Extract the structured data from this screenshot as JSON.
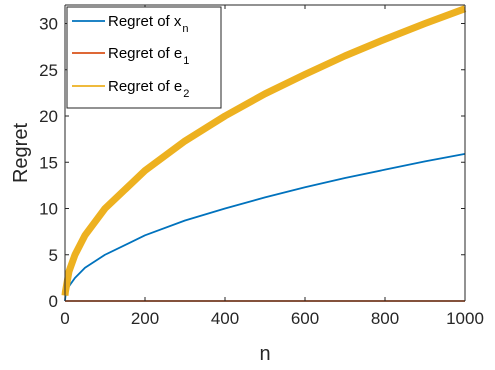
{
  "chart_data": {
    "type": "line",
    "xlabel": "n",
    "ylabel": "Regret",
    "xlim": [
      0,
      1000
    ],
    "ylim": [
      0,
      32
    ],
    "xticks": [
      "0",
      "200",
      "400",
      "600",
      "800",
      "1000"
    ],
    "yticks": [
      "0",
      "5",
      "10",
      "15",
      "20",
      "25",
      "30"
    ],
    "grid": false,
    "legend_position": "top-left",
    "x": [
      1,
      10,
      25,
      50,
      100,
      200,
      300,
      400,
      500,
      600,
      700,
      800,
      900,
      1000
    ],
    "series": [
      {
        "name": "Regret of x",
        "name_subscript": "n",
        "color": "#0072BD",
        "values": [
          0.5,
          1.6,
          2.5,
          3.6,
          5.0,
          7.1,
          8.7,
          10.0,
          11.2,
          12.3,
          13.3,
          14.2,
          15.1,
          15.9
        ]
      },
      {
        "name": "Regret of e",
        "name_subscript": "1",
        "color": "#D95319",
        "values": [
          0,
          0,
          0,
          0,
          0,
          0,
          0,
          0,
          0,
          0,
          0,
          0,
          0,
          0
        ]
      },
      {
        "name": "Regret of e",
        "name_subscript": "2",
        "color": "#EDB120",
        "values": [
          1.0,
          3.2,
          5.0,
          7.1,
          10.0,
          14.1,
          17.3,
          20.0,
          22.4,
          24.5,
          26.5,
          28.3,
          30.0,
          31.6
        ]
      }
    ]
  }
}
